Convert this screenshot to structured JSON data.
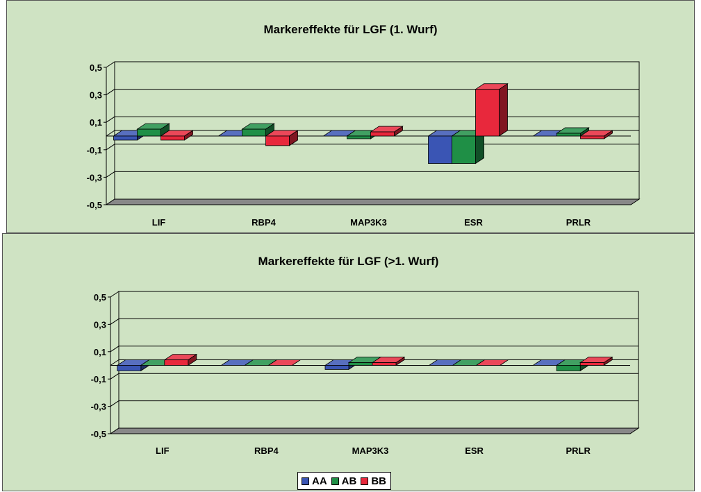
{
  "chart_data": [
    {
      "type": "bar",
      "title": "Markereffekte für LGF (1. Wurf)",
      "categories": [
        "LIF",
        "RBP4",
        "MAP3K3",
        "ESR",
        "PRLR"
      ],
      "ytick_labels": [
        "0,5",
        "0,3",
        "0,1",
        "-0,1",
        "-0,3",
        "-0,5"
      ],
      "ylim": [
        -0.5,
        0.5
      ],
      "series": [
        {
          "name": "AA",
          "color": "#3a55b4",
          "values": [
            -0.03,
            0.0,
            0.0,
            -0.2,
            0.0
          ]
        },
        {
          "name": "AB",
          "color": "#1f8f46",
          "values": [
            0.05,
            0.05,
            -0.02,
            -0.2,
            0.02
          ]
        },
        {
          "name": "BB",
          "color": "#e8283c",
          "values": [
            -0.03,
            -0.07,
            0.03,
            0.34,
            -0.02
          ]
        }
      ]
    },
    {
      "type": "bar",
      "title": "Markereffekte für LGF (>1. Wurf)",
      "categories": [
        "LIF",
        "RBP4",
        "MAP3K3",
        "ESR",
        "PRLR"
      ],
      "ytick_labels": [
        "0,5",
        "0,3",
        "0,1",
        "-0,1",
        "-0,3",
        "-0,5"
      ],
      "ylim": [
        -0.5,
        0.5
      ],
      "series": [
        {
          "name": "AA",
          "color": "#3a55b4",
          "values": [
            -0.04,
            0.0,
            -0.03,
            0.0,
            0.0
          ]
        },
        {
          "name": "AB",
          "color": "#1f8f46",
          "values": [
            0.0,
            0.0,
            0.02,
            0.0,
            -0.04
          ]
        },
        {
          "name": "BB",
          "color": "#e8283c",
          "values": [
            0.04,
            0.0,
            0.02,
            0.0,
            0.02
          ]
        }
      ]
    }
  ],
  "legend": {
    "placement": "bottom-center",
    "items": [
      {
        "label": "AA",
        "color": "#3a55b4"
      },
      {
        "label": "AB",
        "color": "#1f8f46"
      },
      {
        "label": "BB",
        "color": "#e8283c"
      }
    ]
  }
}
